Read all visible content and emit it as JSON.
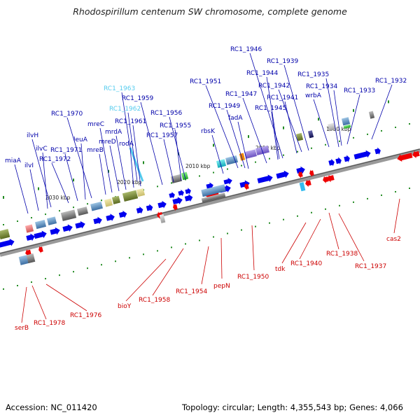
{
  "title": "Rhodospirillum centenum SW chromosome, complete genome",
  "footer": {
    "accession": "Accession: NC_011420",
    "summary": "Topology: circular; Length: 4,355,543 bp; Genes: 4,066"
  },
  "scale_labels": [
    "1990 kbp",
    "2000 kbp",
    "2010 kbp",
    "2020 kbp",
    "2030 kbp"
  ],
  "colors": {
    "forward": "#0000ee",
    "reverse": "#ee0000",
    "highlight": "#55ccee",
    "backbone": "#777777",
    "ticks": "#228b22"
  },
  "genes_top": [
    {
      "name": "RC1_1932",
      "color": "#0000aa"
    },
    {
      "name": "RC1_1933",
      "color": "#0000aa"
    },
    {
      "name": "RC1_1934",
      "color": "#0000aa"
    },
    {
      "name": "RC1_1935",
      "color": "#0000aa"
    },
    {
      "name": "wrbA",
      "color": "#0000aa"
    },
    {
      "name": "RC1_1939",
      "color": "#0000aa"
    },
    {
      "name": "RC1_1942",
      "color": "#0000aa"
    },
    {
      "name": "RC1_1941",
      "color": "#0000aa"
    },
    {
      "name": "RC1_1946",
      "color": "#0000aa"
    },
    {
      "name": "RC1_1944",
      "color": "#0000aa"
    },
    {
      "name": "RC1_1945",
      "color": "#0000aa"
    },
    {
      "name": "RC1_1947",
      "color": "#0000aa"
    },
    {
      "name": "RC1_1951",
      "color": "#0000aa"
    },
    {
      "name": "RC1_1949",
      "color": "#0000aa"
    },
    {
      "name": "fadA",
      "color": "#0000aa"
    },
    {
      "name": "rbsK",
      "color": "#0000aa"
    },
    {
      "name": "RC1_1956",
      "color": "#0000aa"
    },
    {
      "name": "RC1_1955",
      "color": "#0000aa"
    },
    {
      "name": "RC1_1957",
      "color": "#0000aa"
    },
    {
      "name": "RC1_1959",
      "color": "#0000aa"
    },
    {
      "name": "RC1_1963",
      "color": "#55ccee"
    },
    {
      "name": "RC1_1962",
      "color": "#55ccee"
    },
    {
      "name": "RC1_1961",
      "color": "#0000aa"
    },
    {
      "name": "rodA",
      "color": "#0000aa"
    },
    {
      "name": "mrdA",
      "color": "#0000aa"
    },
    {
      "name": "mreD",
      "color": "#0000aa"
    },
    {
      "name": "mreC",
      "color": "#0000aa"
    },
    {
      "name": "mreB",
      "color": "#0000aa"
    },
    {
      "name": "RC1_1970",
      "color": "#0000aa"
    },
    {
      "name": "leuA",
      "color": "#0000aa"
    },
    {
      "name": "RC1_1971",
      "color": "#0000aa"
    },
    {
      "name": "RC1_1972",
      "color": "#0000aa"
    },
    {
      "name": "ilvH",
      "color": "#0000aa"
    },
    {
      "name": "ilvC",
      "color": "#0000aa"
    },
    {
      "name": "ilvI",
      "color": "#0000aa"
    },
    {
      "name": "miaA",
      "color": "#0000aa"
    }
  ],
  "genes_bottom": [
    {
      "name": "cas2"
    },
    {
      "name": "RC1_1937"
    },
    {
      "name": "RC1_1938"
    },
    {
      "name": "RC1_1940"
    },
    {
      "name": "tdk"
    },
    {
      "name": "RC1_1950"
    },
    {
      "name": "pepN"
    },
    {
      "name": "RC1_1954"
    },
    {
      "name": "RC1_1958"
    },
    {
      "name": "bioY"
    },
    {
      "name": "RC1_1976"
    },
    {
      "name": "RC1_1978"
    },
    {
      "name": "serB"
    }
  ]
}
